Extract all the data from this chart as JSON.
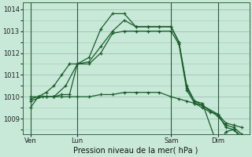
{
  "background_color": "#c8e8d8",
  "grid_color": "#a0c8b8",
  "line_color": "#1a5c2a",
  "title": "Pression niveau de la mer( hPa )",
  "ylim": [
    1008.3,
    1014.3
  ],
  "yticks": [
    1009,
    1010,
    1011,
    1012,
    1013,
    1014
  ],
  "xtick_labels": [
    "Ven",
    "Lun",
    "Sam",
    "Dim"
  ],
  "xtick_positions": [
    2,
    14,
    38,
    50
  ],
  "vlines": [
    2,
    14,
    38,
    50
  ],
  "xlim": [
    0,
    58
  ],
  "series": [
    {
      "x": [
        2,
        4,
        6,
        8,
        10,
        12,
        14,
        17,
        20,
        23,
        26,
        29,
        32,
        35,
        38,
        40,
        42,
        44,
        46,
        48,
        50,
        52,
        54,
        56
      ],
      "y": [
        1009.9,
        1010.0,
        1010.0,
        1010.0,
        1010.0,
        1010.0,
        1010.0,
        1010.0,
        1010.1,
        1010.1,
        1010.2,
        1010.2,
        1010.2,
        1010.2,
        1010.0,
        1009.9,
        1009.8,
        1009.7,
        1009.5,
        1009.3,
        1009.2,
        1008.8,
        1008.7,
        1008.6
      ]
    },
    {
      "x": [
        2,
        4,
        6,
        8,
        10,
        12,
        14,
        17,
        20,
        23,
        26,
        29,
        32,
        35,
        38,
        40,
        42,
        44,
        46,
        50,
        52,
        54,
        56
      ],
      "y": [
        1009.5,
        1010.0,
        1010.0,
        1010.0,
        1010.1,
        1010.1,
        1011.5,
        1011.5,
        1012.0,
        1012.9,
        1013.0,
        1013.0,
        1013.0,
        1013.0,
        1013.0,
        1012.4,
        1010.3,
        1009.7,
        1009.6,
        1009.2,
        1008.6,
        1008.5,
        1008.2
      ]
    },
    {
      "x": [
        2,
        4,
        6,
        8,
        10,
        12,
        14,
        17,
        20,
        23,
        26,
        29,
        32,
        35,
        38,
        40,
        42,
        44,
        46,
        50,
        52,
        54,
        56
      ],
      "y": [
        1010.0,
        1010.0,
        1010.2,
        1010.5,
        1011.0,
        1011.5,
        1011.5,
        1011.8,
        1013.1,
        1013.8,
        1013.8,
        1013.2,
        1013.2,
        1013.2,
        1013.2,
        1012.5,
        1010.4,
        1009.8,
        1009.7,
        1007.7,
        1008.4,
        1008.5,
        1008.1
      ]
    },
    {
      "x": [
        2,
        5,
        8,
        11,
        14,
        17,
        20,
        23,
        26,
        29,
        32,
        35,
        38,
        40,
        42,
        44,
        46,
        50,
        52,
        54,
        56
      ],
      "y": [
        1009.8,
        1010.0,
        1010.0,
        1010.5,
        1011.5,
        1011.6,
        1012.3,
        1013.0,
        1013.5,
        1013.2,
        1013.2,
        1013.2,
        1013.2,
        1012.5,
        1010.5,
        1009.8,
        1009.6,
        1009.1,
        1008.7,
        1008.6,
        1008.3
      ]
    }
  ]
}
